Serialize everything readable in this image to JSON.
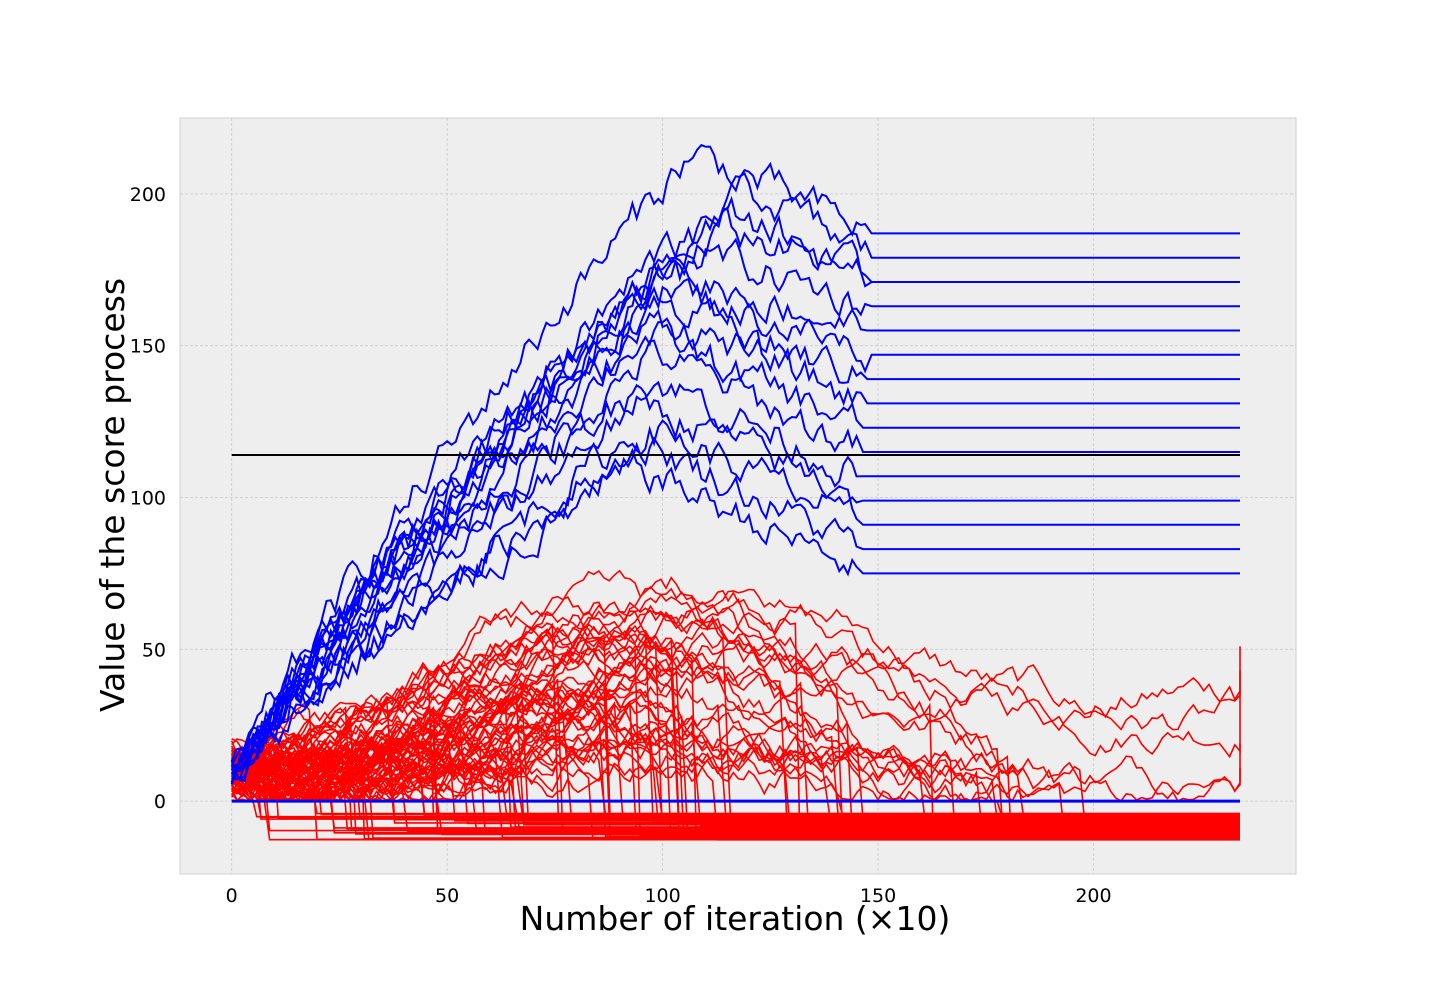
{
  "chart_data": {
    "type": "line",
    "title": "",
    "xlabel": "Number of iteration (×10)",
    "ylabel": "Value of the score process",
    "xlim": [
      -12,
      247
    ],
    "ylim": [
      -24,
      225
    ],
    "xticks": [
      0,
      50,
      100,
      150,
      200
    ],
    "yticks": [
      0,
      50,
      100,
      150,
      200
    ],
    "grid": true,
    "background": "#eeeeee",
    "threshold": {
      "value": 114,
      "x": [
        0,
        234
      ],
      "color": "#000000"
    },
    "colors": {
      "accepted": "#0000ff",
      "rejected": "#ff0000"
    },
    "blue_series": {
      "count": 16,
      "start": 10,
      "end_x": 234,
      "final_values": [
        187,
        179,
        171,
        171,
        163,
        155,
        147,
        139,
        131,
        123,
        115,
        107,
        99,
        91,
        83,
        75
      ],
      "peak_values": [
        214,
        202,
        195,
        190,
        184,
        176,
        171,
        164,
        160,
        154,
        148,
        140,
        132,
        124,
        118,
        110
      ],
      "peak_x": [
        105,
        118,
        115,
        110,
        100,
        97,
        96,
        95,
        98,
        94,
        96,
        95,
        93,
        95,
        94,
        92
      ],
      "stop_x": [
        147,
        147,
        147,
        147,
        147,
        146,
        147,
        146,
        146,
        145,
        145,
        145,
        145,
        145,
        145,
        145
      ]
    },
    "blue_zero_line": {
      "value": 0,
      "x": [
        0,
        234
      ]
    },
    "red_series": {
      "count": 90,
      "start_range": [
        2,
        20
      ],
      "envelope_upper": [
        [
          0,
          12
        ],
        [
          10,
          30
        ],
        [
          20,
          50
        ],
        [
          40,
          60
        ],
        [
          60,
          65
        ],
        [
          80,
          70
        ],
        [
          95,
          100
        ],
        [
          110,
          70
        ],
        [
          140,
          60
        ],
        [
          180,
          65
        ],
        [
          200,
          50
        ],
        [
          234,
          51
        ]
      ],
      "final_values_survivors": [
        51,
        43,
        36,
        19,
        11
      ],
      "final_values_terminated_range": [
        -13,
        -4
      ]
    }
  }
}
